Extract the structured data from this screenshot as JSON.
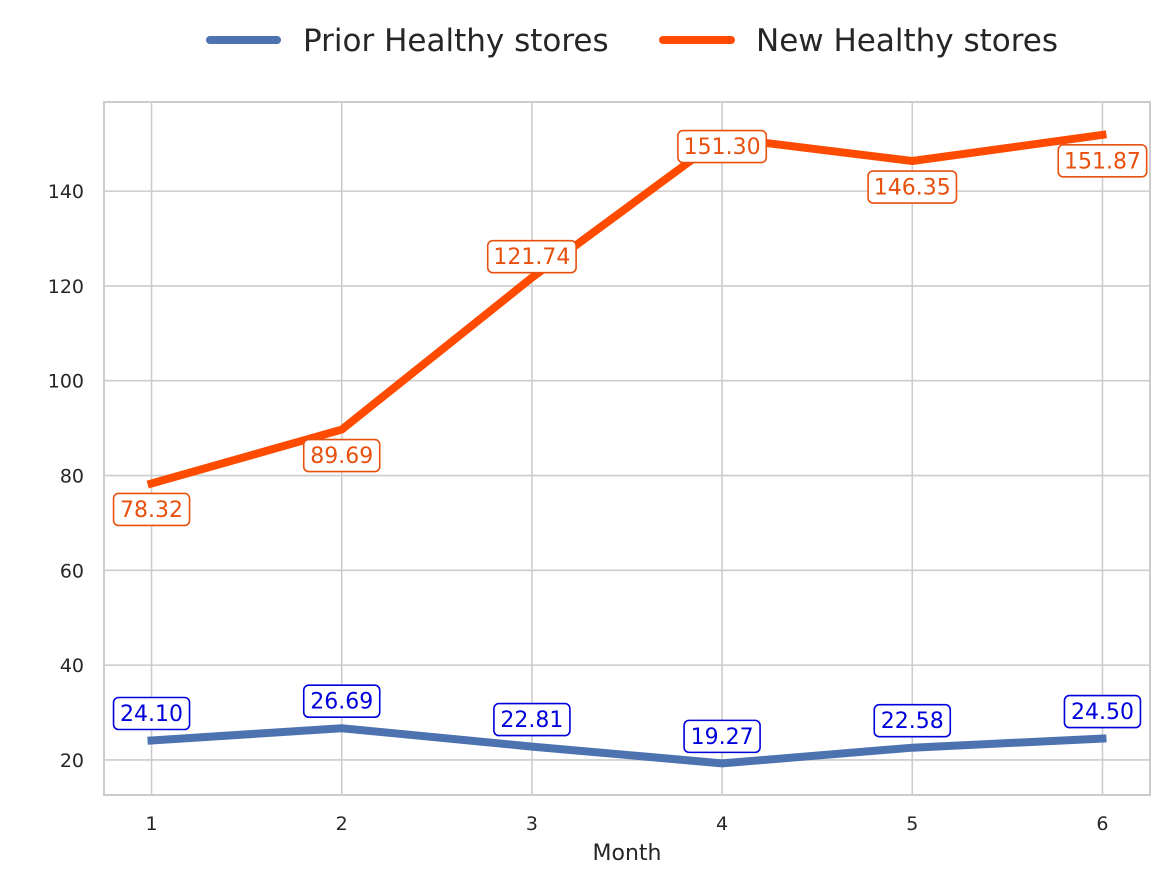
{
  "chart_data": {
    "type": "line",
    "title": "",
    "xlabel": "Month",
    "ylabel": "",
    "x": [
      1,
      2,
      3,
      4,
      5,
      6
    ],
    "xticks": [
      "1",
      "2",
      "3",
      "4",
      "5",
      "6"
    ],
    "yticks": [
      "20",
      "40",
      "60",
      "80",
      "100",
      "120",
      "140"
    ],
    "xlim": [
      0.75,
      6.25
    ],
    "ylim": [
      12.6,
      158.8
    ],
    "grid": true,
    "legend_position": "top-center",
    "series": [
      {
        "name": "Prior Healthy stores",
        "color": "#4c72b0",
        "label_color": "#0000dd",
        "values": [
          24.1,
          26.69,
          22.81,
          19.27,
          22.58,
          24.5
        ],
        "labels": [
          "24.10",
          "26.69",
          "22.81",
          "19.27",
          "22.58",
          "24.50"
        ]
      },
      {
        "name": "New Healthy stores",
        "color": "#ff4b00",
        "label_color": "#e8500e",
        "values": [
          78.32,
          89.69,
          121.74,
          151.3,
          146.35,
          151.87
        ],
        "labels": [
          "78.32",
          "89.69",
          "121.74",
          "151.30",
          "146.35",
          "151.87"
        ]
      }
    ]
  }
}
